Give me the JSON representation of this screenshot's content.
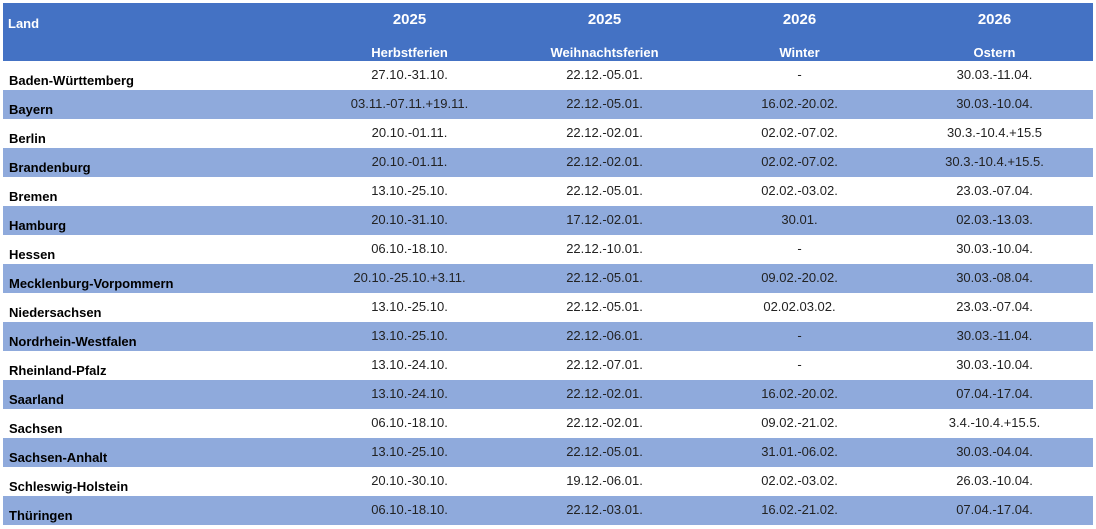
{
  "header": {
    "land": "Land",
    "columns": [
      {
        "year": "2025",
        "name": "Herbstferien"
      },
      {
        "year": "2025",
        "name": "Weihnachtsferien"
      },
      {
        "year": "2026",
        "name": "Winter"
      },
      {
        "year": "2026",
        "name": "Ostern"
      }
    ]
  },
  "colors": {
    "header": "#4472c4",
    "stripe": "#8faadc"
  },
  "rows": [
    {
      "land": "Baden-Württemberg",
      "values": [
        "27.10.-31.10.",
        "22.12.-05.01.",
        "-",
        "30.03.-11.04."
      ]
    },
    {
      "land": "Bayern",
      "values": [
        "03.11.-07.11.+19.11.",
        "22.12.-05.01.",
        "16.02.-20.02.",
        "30.03.-10.04."
      ]
    },
    {
      "land": "Berlin",
      "values": [
        "20.10.-01.11.",
        "22.12.-02.01.",
        "02.02.-07.02.",
        "30.3.-10.4.+15.5"
      ]
    },
    {
      "land": "Brandenburg",
      "values": [
        "20.10.-01.11.",
        "22.12.-02.01.",
        "02.02.-07.02.",
        "30.3.-10.4.+15.5."
      ]
    },
    {
      "land": "Bremen",
      "values": [
        "13.10.-25.10.",
        "22.12.-05.01.",
        "02.02.-03.02.",
        "23.03.-07.04."
      ]
    },
    {
      "land": "Hamburg",
      "values": [
        "20.10.-31.10.",
        "17.12.-02.01.",
        "30.01.",
        "02.03.-13.03."
      ]
    },
    {
      "land": "Hessen",
      "values": [
        "06.10.-18.10.",
        "22.12.-10.01.",
        "-",
        "30.03.-10.04."
      ]
    },
    {
      "land": "Mecklenburg-Vorpommern",
      "values": [
        "20.10.-25.10.+3.11.",
        "22.12.-05.01.",
        "09.02.-20.02.",
        "30.03.-08.04."
      ]
    },
    {
      "land": "Niedersachsen",
      "values": [
        "13.10.-25.10.",
        "22.12.-05.01.",
        "02.02.03.02.",
        "23.03.-07.04."
      ]
    },
    {
      "land": "Nordrhein-Westfalen",
      "values": [
        "13.10.-25.10.",
        "22.12.-06.01.",
        "-",
        "30.03.-11.04."
      ]
    },
    {
      "land": "Rheinland-Pfalz",
      "values": [
        "13.10.-24.10.",
        "22.12.-07.01.",
        "-",
        "30.03.-10.04."
      ]
    },
    {
      "land": "Saarland",
      "values": [
        "13.10.-24.10.",
        "22.12.-02.01.",
        "16.02.-20.02.",
        "07.04.-17.04."
      ]
    },
    {
      "land": "Sachsen",
      "values": [
        "06.10.-18.10.",
        "22.12.-02.01.",
        "09.02.-21.02.",
        "3.4.-10.4.+15.5."
      ]
    },
    {
      "land": "Sachsen-Anhalt",
      "values": [
        "13.10.-25.10.",
        "22.12.-05.01.",
        "31.01.-06.02.",
        "30.03.-04.04."
      ]
    },
    {
      "land": "Schleswig-Holstein",
      "values": [
        "20.10.-30.10.",
        "19.12.-06.01.",
        "02.02.-03.02.",
        "26.03.-10.04."
      ]
    },
    {
      "land": "Thüringen",
      "values": [
        "06.10.-18.10.",
        "22.12.-03.01.",
        "16.02.-21.02.",
        "07.04.-17.04."
      ]
    }
  ]
}
